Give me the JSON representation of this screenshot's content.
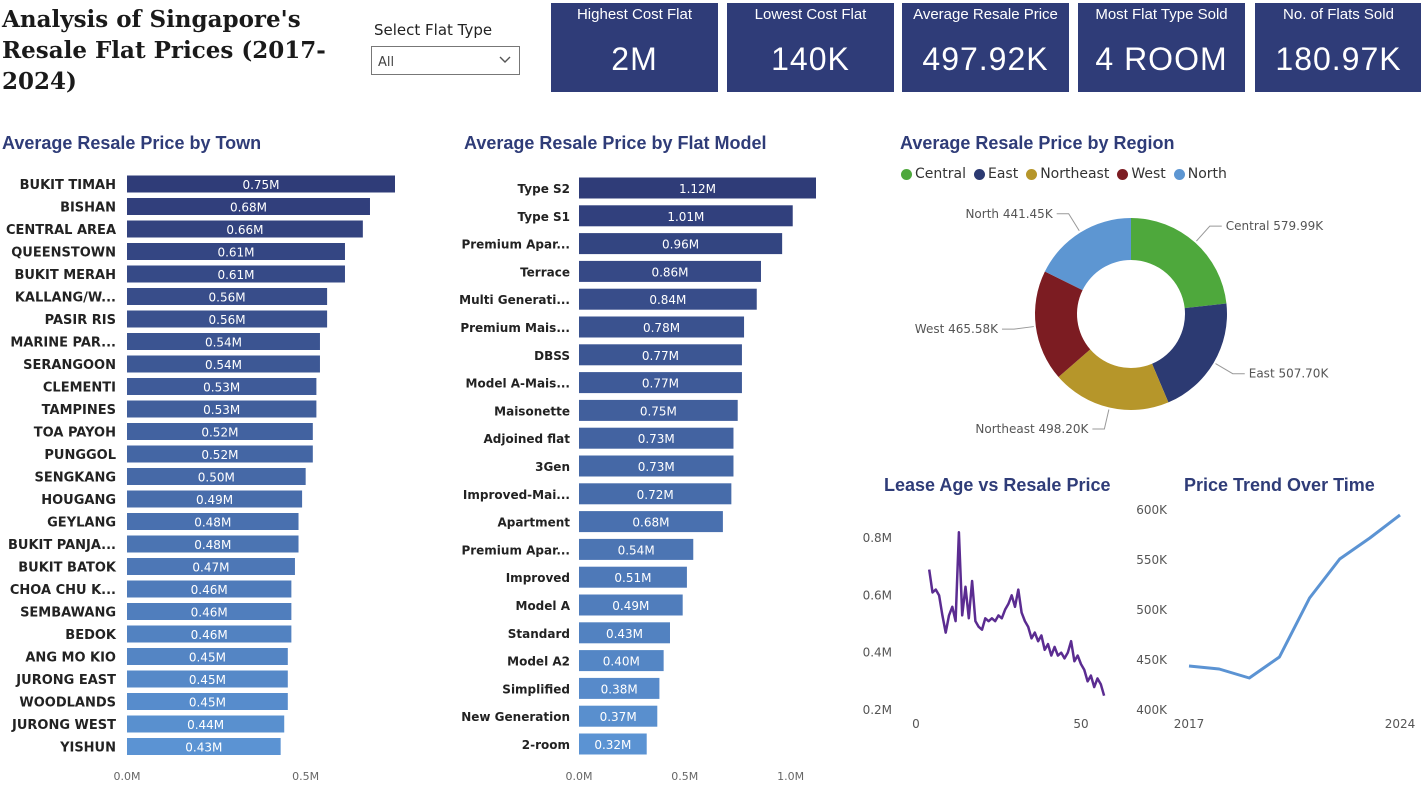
{
  "dashboard": {
    "title": "Analysis of Singapore's Resale Flat Prices (2017-2024)",
    "slicer": {
      "label": "Select Flat Type",
      "value": "All"
    },
    "kpis": [
      {
        "label": "Highest Cost Flat",
        "value": "2M"
      },
      {
        "label": "Lowest Cost Flat",
        "value": "140K"
      },
      {
        "label": "Average Resale Price",
        "value": "497.92K"
      },
      {
        "label": "Most Flat Type Sold",
        "value": "4 ROOM"
      },
      {
        "label": "No. of Flats Sold",
        "value": "180.97K"
      }
    ]
  },
  "chart_data": [
    {
      "id": "town",
      "type": "bar",
      "orientation": "horizontal",
      "title": "Average Resale Price by Town",
      "xlim": [
        0,
        0.75
      ],
      "xticks": [
        "0.0M",
        "0.5M"
      ],
      "color_dark": "#2f3c78",
      "color_light": "#5b93d3",
      "categories": [
        "BUKIT TIMAH",
        "BISHAN",
        "CENTRAL AREA",
        "QUEENSTOWN",
        "BUKIT MERAH",
        "KALLANG/W...",
        "PASIR RIS",
        "MARINE PAR...",
        "SERANGOON",
        "CLEMENTI",
        "TAMPINES",
        "TOA PAYOH",
        "PUNGGOL",
        "SENGKANG",
        "HOUGANG",
        "GEYLANG",
        "BUKIT PANJA...",
        "BUKIT BATOK",
        "CHOA CHU K...",
        "SEMBAWANG",
        "BEDOK",
        "ANG MO KIO",
        "JURONG EAST",
        "WOODLANDS",
        "JURONG WEST",
        "YISHUN"
      ],
      "values": [
        0.75,
        0.68,
        0.66,
        0.61,
        0.61,
        0.56,
        0.56,
        0.54,
        0.54,
        0.53,
        0.53,
        0.52,
        0.52,
        0.5,
        0.49,
        0.48,
        0.48,
        0.47,
        0.46,
        0.46,
        0.46,
        0.45,
        0.45,
        0.45,
        0.44,
        0.43
      ],
      "value_labels": [
        "0.75M",
        "0.68M",
        "0.66M",
        "0.61M",
        "0.61M",
        "0.56M",
        "0.56M",
        "0.54M",
        "0.54M",
        "0.53M",
        "0.53M",
        "0.52M",
        "0.52M",
        "0.50M",
        "0.49M",
        "0.48M",
        "0.48M",
        "0.47M",
        "0.46M",
        "0.46M",
        "0.46M",
        "0.45M",
        "0.45M",
        "0.45M",
        "0.44M",
        "0.43M"
      ]
    },
    {
      "id": "model",
      "type": "bar",
      "orientation": "horizontal",
      "title": "Average Resale Price by Flat Model",
      "xlim": [
        0,
        1.12
      ],
      "xticks": [
        "0.0M",
        "0.5M",
        "1.0M"
      ],
      "color_dark": "#2f3c78",
      "color_light": "#5b93d3",
      "categories": [
        "Type S2",
        "Type S1",
        "Premium Apar...",
        "Terrace",
        "Multi Generati...",
        "Premium Mais...",
        "DBSS",
        "Model A-Mais...",
        "Maisonette",
        "Adjoined flat",
        "3Gen",
        "Improved-Mai...",
        "Apartment",
        "Premium Apar...",
        "Improved",
        "Model A",
        "Standard",
        "Model A2",
        "Simplified",
        "New Generation",
        "2-room"
      ],
      "values": [
        1.12,
        1.01,
        0.96,
        0.86,
        0.84,
        0.78,
        0.77,
        0.77,
        0.75,
        0.73,
        0.73,
        0.72,
        0.68,
        0.54,
        0.51,
        0.49,
        0.43,
        0.4,
        0.38,
        0.37,
        0.32
      ],
      "value_labels": [
        "1.12M",
        "1.01M",
        "0.96M",
        "0.86M",
        "0.84M",
        "0.78M",
        "0.77M",
        "0.77M",
        "0.75M",
        "0.73M",
        "0.73M",
        "0.72M",
        "0.68M",
        "0.54M",
        "0.51M",
        "0.49M",
        "0.43M",
        "0.40M",
        "0.38M",
        "0.37M",
        "0.32M"
      ]
    },
    {
      "id": "region",
      "type": "pie",
      "variant": "donut",
      "title": "Average Resale Price by Region",
      "legend_position": "top",
      "categories": [
        "Central",
        "East",
        "Northeast",
        "West",
        "North"
      ],
      "values": [
        579.99,
        507.7,
        498.2,
        465.58,
        441.45
      ],
      "value_labels": [
        "579.99K",
        "507.70K",
        "498.20K",
        "465.58K",
        "441.45K"
      ],
      "colors": [
        "#4ea83c",
        "#2c3a72",
        "#b6962a",
        "#7c1c22",
        "#5d96d2"
      ]
    },
    {
      "id": "lease",
      "type": "line",
      "title": "Lease Age vs Resale Price",
      "x_ticks": [
        0,
        50
      ],
      "y_ticks": [
        "0.8M",
        "0.6M",
        "0.4M",
        "0.2M"
      ],
      "ylim": [
        0.2,
        0.8
      ],
      "color": "#5b2c91",
      "x": [
        4,
        5,
        6,
        7,
        8,
        9,
        10,
        11,
        12,
        13,
        14,
        15,
        16,
        17,
        18,
        19,
        20,
        21,
        22,
        23,
        24,
        25,
        26,
        27,
        28,
        29,
        30,
        31,
        32,
        33,
        34,
        35,
        36,
        37,
        38,
        39,
        40,
        41,
        42,
        43,
        44,
        45,
        46,
        47,
        48,
        49,
        50,
        51,
        52,
        53,
        54,
        55,
        56,
        57
      ],
      "y": [
        0.69,
        0.61,
        0.62,
        0.6,
        0.53,
        0.47,
        0.53,
        0.56,
        0.51,
        0.82,
        0.53,
        0.63,
        0.52,
        0.65,
        0.51,
        0.49,
        0.48,
        0.52,
        0.51,
        0.52,
        0.51,
        0.53,
        0.52,
        0.55,
        0.57,
        0.6,
        0.56,
        0.62,
        0.54,
        0.51,
        0.49,
        0.45,
        0.47,
        0.44,
        0.46,
        0.41,
        0.43,
        0.39,
        0.42,
        0.39,
        0.4,
        0.38,
        0.4,
        0.44,
        0.37,
        0.39,
        0.36,
        0.34,
        0.3,
        0.32,
        0.28,
        0.31,
        0.29,
        0.25
      ]
    },
    {
      "id": "trend",
      "type": "line",
      "title": "Price Trend Over Time",
      "x": [
        2017,
        2018,
        2019,
        2020,
        2021,
        2022,
        2023,
        2024
      ],
      "y": [
        444,
        441,
        432,
        453,
        512,
        551,
        572,
        595
      ],
      "x_ticks": [
        "2017",
        "2024"
      ],
      "y_ticks": [
        "600K",
        "550K",
        "500K",
        "450K",
        "400K"
      ],
      "ylim": [
        400,
        600
      ],
      "color": "#5b93d3"
    }
  ]
}
